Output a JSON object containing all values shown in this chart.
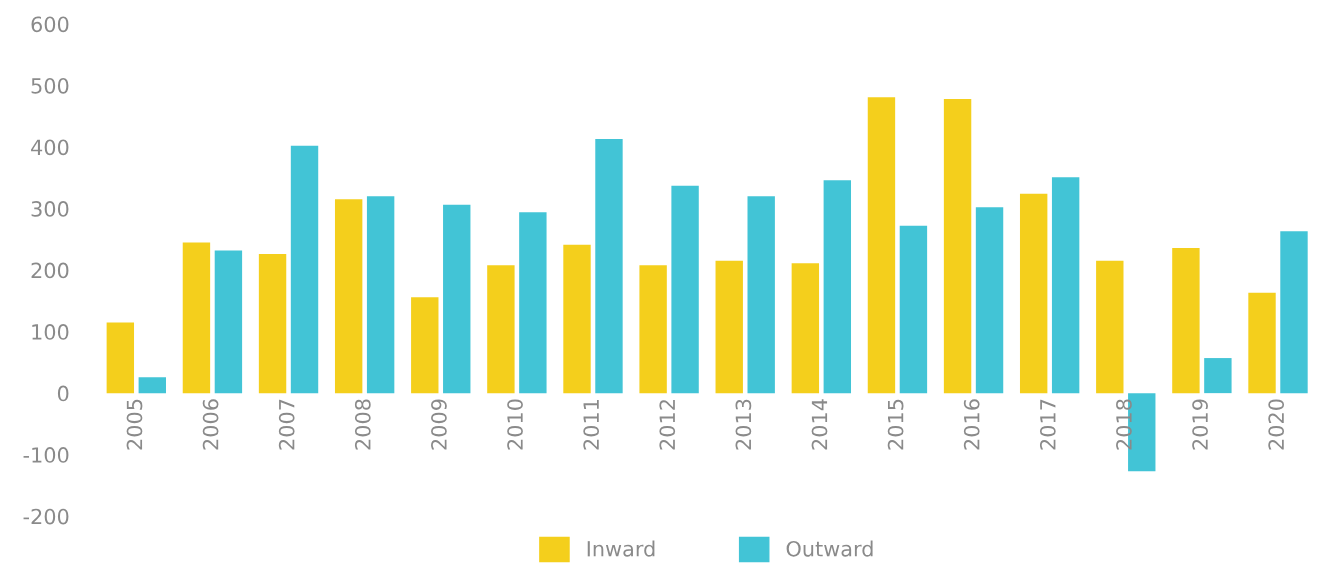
{
  "chart_data": {
    "type": "bar",
    "categories": [
      "2005",
      "2006",
      "2007",
      "2008",
      "2009",
      "2010",
      "2011",
      "2012",
      "2013",
      "2014",
      "2015",
      "2016",
      "2017",
      "2018",
      "2019",
      "2020"
    ],
    "series": [
      {
        "name": "Inward",
        "color": "#f4cf1c",
        "values": [
          115,
          245,
          226,
          315,
          156,
          208,
          241,
          208,
          215,
          211,
          481,
          478,
          324,
          215,
          236,
          163
        ]
      },
      {
        "name": "Outward",
        "color": "#42c4d6",
        "values": [
          26,
          232,
          402,
          320,
          306,
          294,
          413,
          337,
          320,
          346,
          272,
          302,
          351,
          -127,
          57,
          263
        ]
      }
    ],
    "ylim": [
      -200,
      600
    ],
    "yticks": [
      -200,
      -100,
      0,
      100,
      200,
      300,
      400,
      500,
      600
    ],
    "grid": false,
    "legend": "bottom"
  }
}
